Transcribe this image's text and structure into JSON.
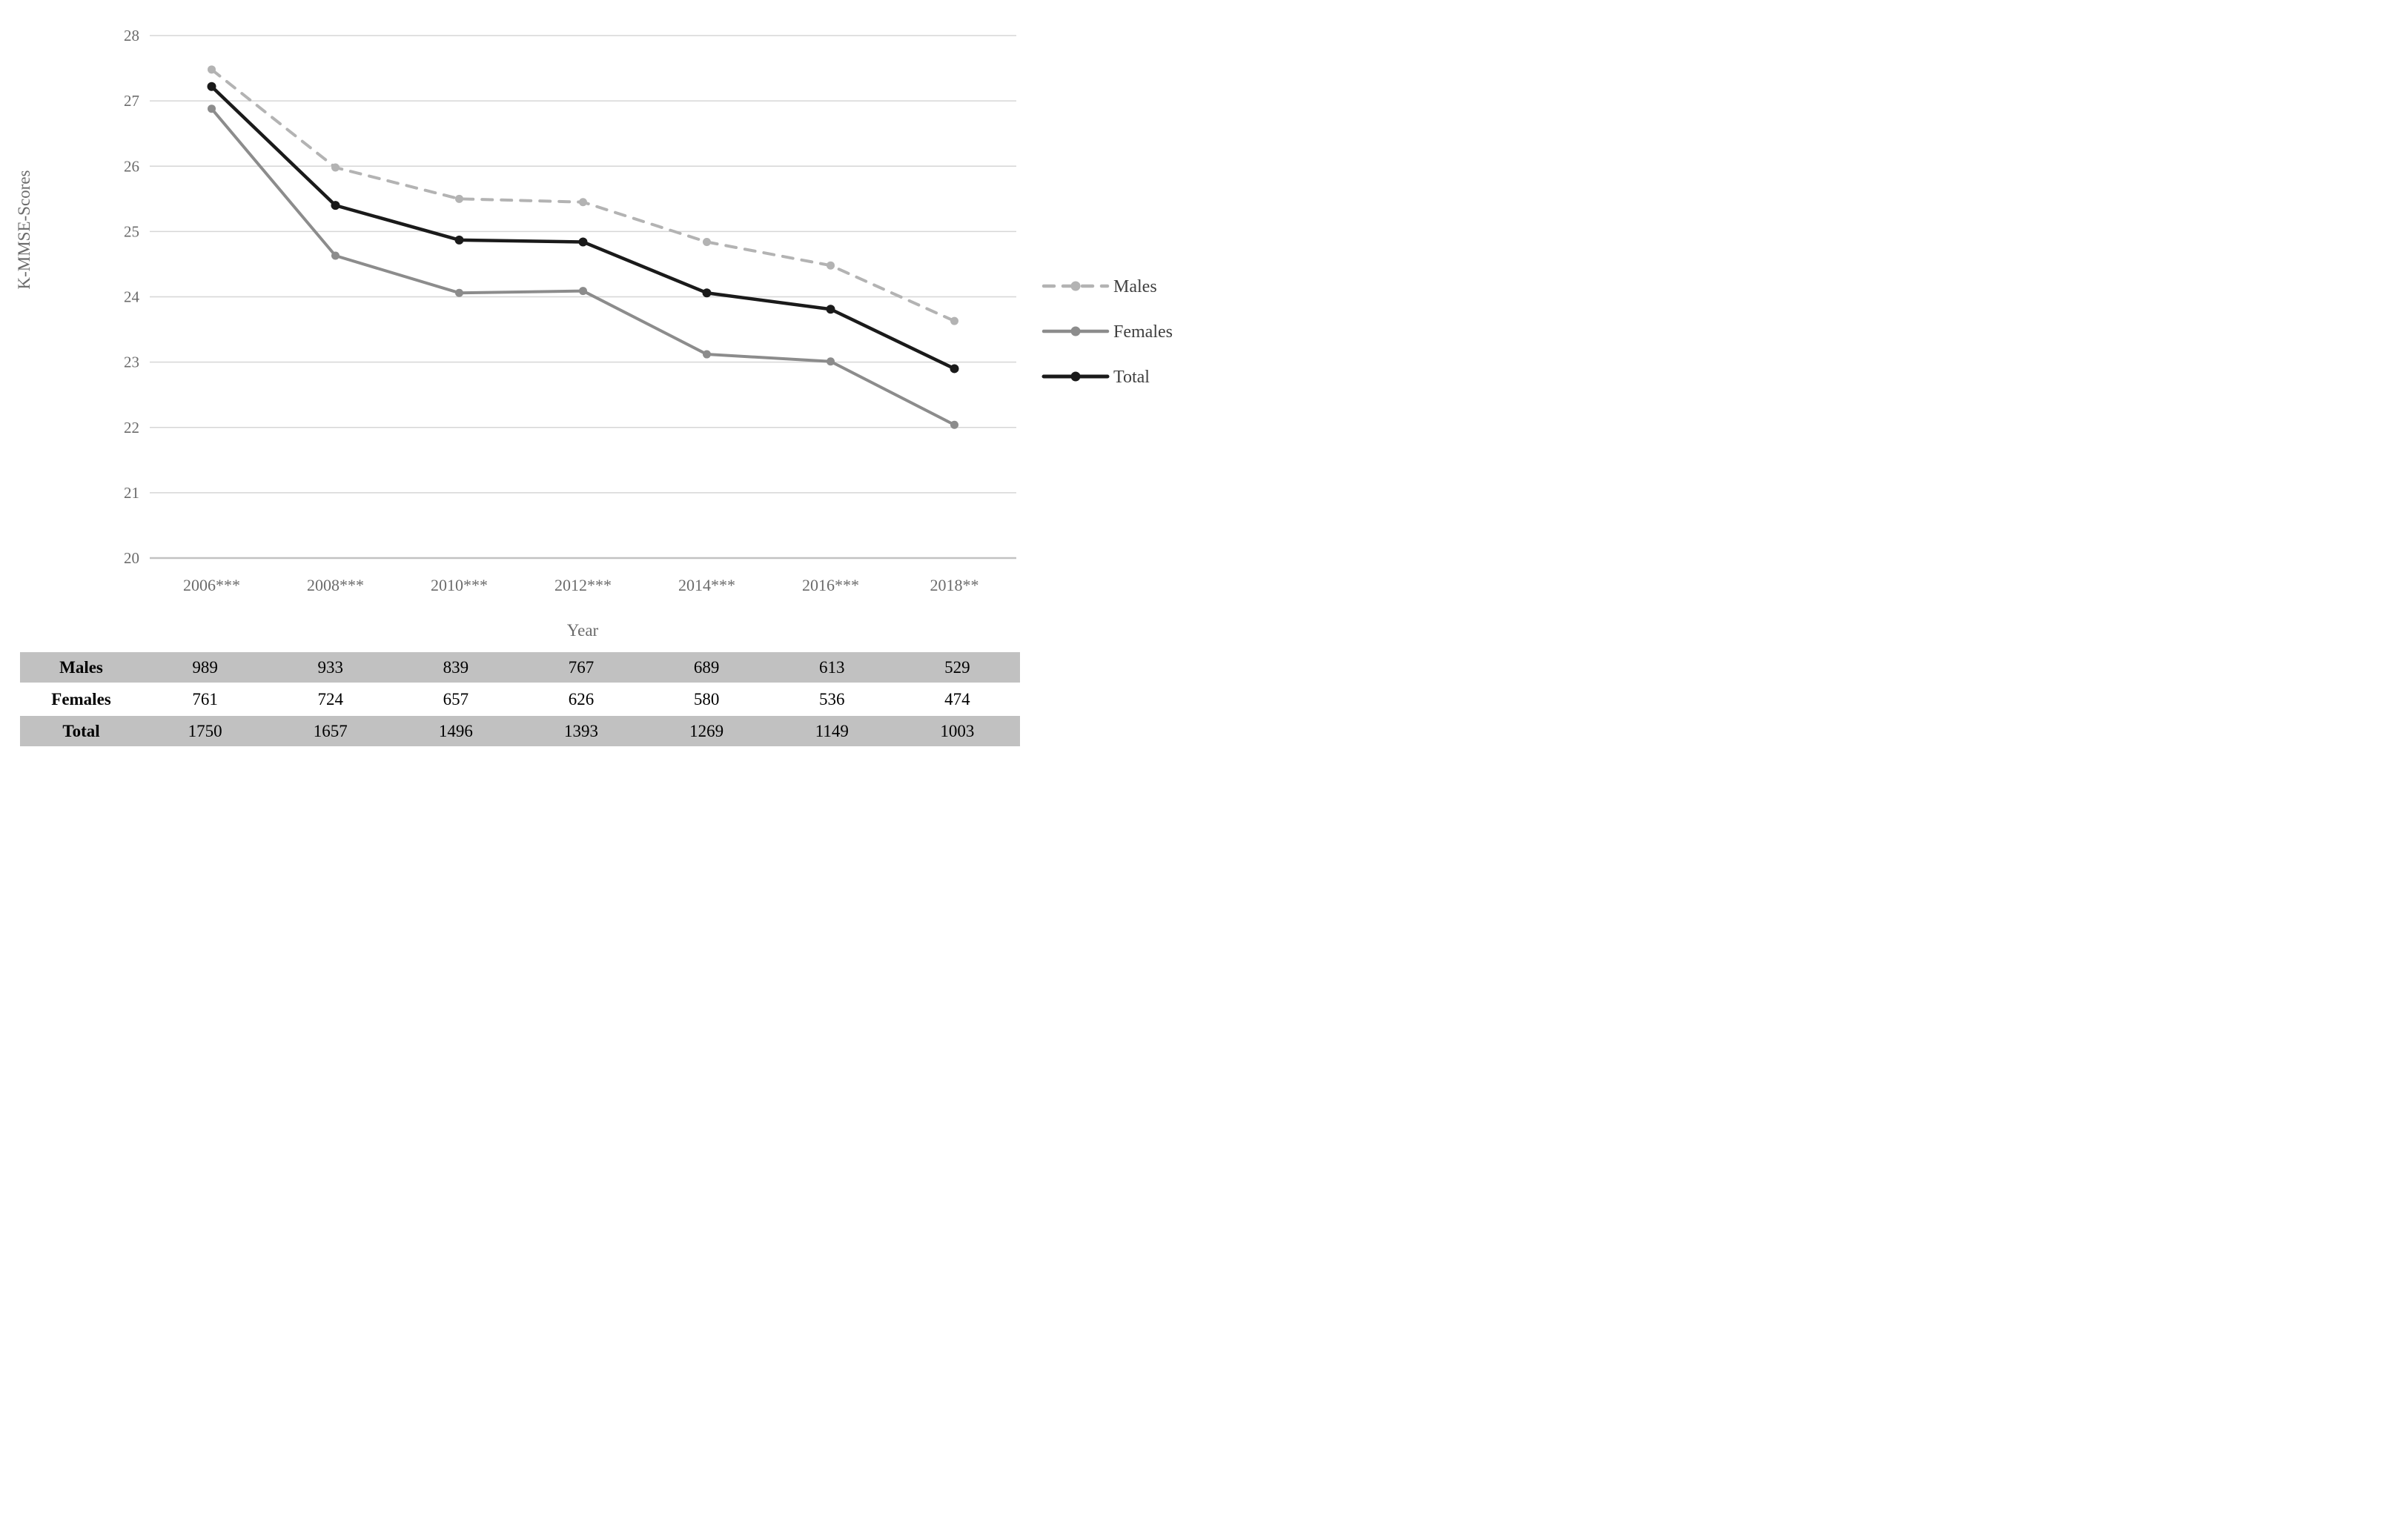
{
  "chart_data": {
    "type": "line",
    "title": "",
    "categories": [
      "2006***",
      "2008***",
      "2010***",
      "2012***",
      "2014***",
      "2016***",
      "2018**"
    ],
    "series": [
      {
        "name": "Males",
        "values": [
          27.48,
          25.98,
          25.5,
          25.45,
          24.84,
          24.48,
          23.63
        ],
        "color": "#b3b3b3",
        "style": "dashed"
      },
      {
        "name": "Females",
        "values": [
          26.88,
          24.63,
          24.06,
          24.09,
          23.12,
          23.01,
          22.04
        ],
        "color": "#8c8c8c",
        "style": "solid"
      },
      {
        "name": "Total",
        "values": [
          27.22,
          25.4,
          24.87,
          24.84,
          24.06,
          23.81,
          22.9
        ],
        "color": "#1a1a1a",
        "style": "solid"
      }
    ],
    "xlabel": "Year",
    "ylabel": "K-MMSE-Scores",
    "ylim": [
      20,
      28
    ],
    "yticks": [
      28,
      27,
      26,
      25,
      24,
      23,
      22,
      21,
      20
    ],
    "grid": true,
    "legend_position": "right",
    "legend_items": [
      "Males",
      "Females",
      "Total"
    ]
  },
  "table": {
    "rows": [
      {
        "label": "Males",
        "values": [
          "989",
          "933",
          "839",
          "767",
          "689",
          "613",
          "529"
        ],
        "shaded": true
      },
      {
        "label": "Females",
        "values": [
          "761",
          "724",
          "657",
          "626",
          "580",
          "536",
          "474"
        ],
        "shaded": false
      },
      {
        "label": "Total",
        "values": [
          "1750",
          "1657",
          "1496",
          "1393",
          "1269",
          "1149",
          "1003"
        ],
        "shaded": true
      }
    ]
  },
  "colors": {
    "grid": "#d6d6d6",
    "baseline": "#c2c2c2",
    "axis_text": "#6b6b6b",
    "legend_text": "#3f3f3f",
    "table_shade": "#c1c1c1",
    "background": "#ffffff"
  }
}
